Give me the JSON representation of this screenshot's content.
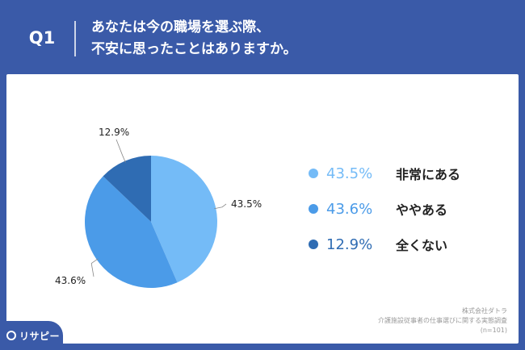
{
  "header": {
    "badge": "Q1",
    "question": "あなたは今の職場を選ぶ際、\n不安に思ったことはありますか。"
  },
  "chart_data": {
    "type": "pie",
    "title": "",
    "slices": [
      {
        "label": "非常にある",
        "value": 43.5,
        "display": "43.5%",
        "color": "#74bbf7"
      },
      {
        "label": "ややある",
        "value": 43.6,
        "display": "43.6%",
        "color": "#4b9be8"
      },
      {
        "label": "全くない",
        "value": 12.9,
        "display": "12.9%",
        "color": "#2f6cb3"
      }
    ],
    "legend_placement": "right"
  },
  "source": {
    "company": "株式会社ダトラ",
    "survey": "介護施設従事者の仕事選びに関する実態調査",
    "sample": "(n=101)"
  },
  "logo": {
    "text": "リサピー"
  }
}
